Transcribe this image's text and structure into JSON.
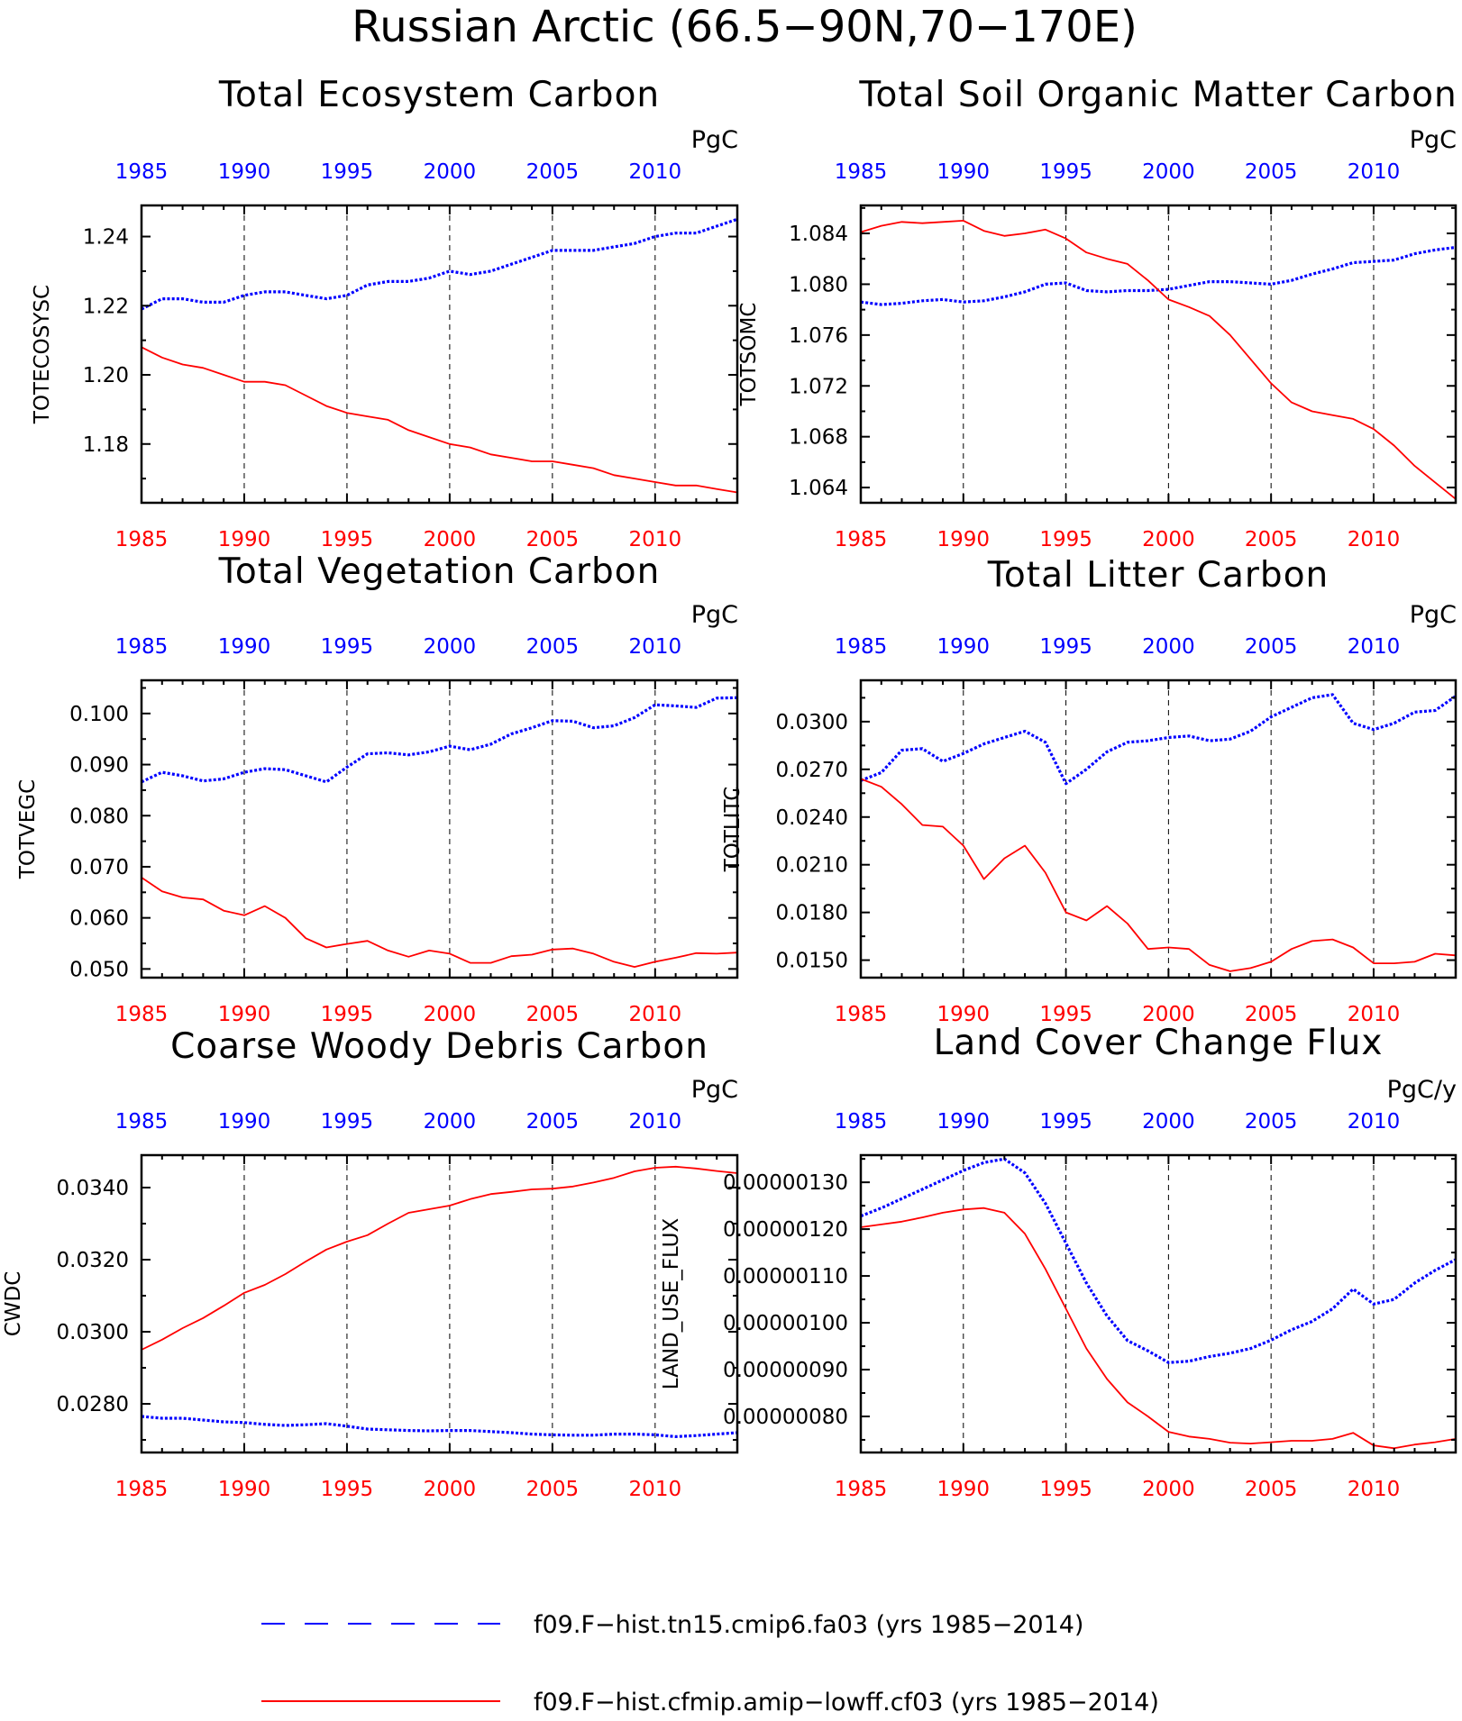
{
  "figure": {
    "title": "Russian Arctic (66.5−90N,70−170E)",
    "legend": [
      {
        "label": "f09.F−hist.tn15.cmip6.fa03 (yrs 1985−2014)",
        "color": "#0000ff",
        "style": "dashed"
      },
      {
        "label": "f09.F−hist.cfmip.amip−lowff.cf03 (yrs 1985−2014)",
        "color": "#ff0000",
        "style": "solid"
      }
    ],
    "colors": {
      "top_axis": "#0000ff",
      "bottom_axis": "#ff0000",
      "grid": "#000000"
    }
  },
  "chart_data": [
    {
      "type": "line",
      "title": "Total Ecosystem Carbon",
      "ylabel": "TOTECOSYSC",
      "units": "PgC",
      "xlim": [
        1985,
        2014
      ],
      "ylim": [
        1.163,
        1.249
      ],
      "x_ticks": [
        "1985",
        "1990",
        "1995",
        "2000",
        "2005",
        "2010"
      ],
      "y_ticks": [
        1.18,
        1.2,
        1.22,
        1.24
      ],
      "y_tick_labels": [
        "1.18",
        "1.20",
        "1.22",
        "1.24"
      ],
      "grid": "dashed vertical at 1990, 1995, 2000, 2005, 2010",
      "x": [
        1985,
        1986,
        1987,
        1988,
        1989,
        1990,
        1991,
        1992,
        1993,
        1994,
        1995,
        1996,
        1997,
        1998,
        1999,
        2000,
        2001,
        2002,
        2003,
        2004,
        2005,
        2006,
        2007,
        2008,
        2009,
        2010,
        2011,
        2012,
        2013,
        2014
      ],
      "series": [
        {
          "color": "#0000ff",
          "dashed": true,
          "values": [
            1.219,
            1.222,
            1.222,
            1.221,
            1.221,
            1.223,
            1.224,
            1.224,
            1.223,
            1.222,
            1.223,
            1.226,
            1.227,
            1.227,
            1.228,
            1.23,
            1.229,
            1.23,
            1.232,
            1.234,
            1.236,
            1.236,
            1.236,
            1.237,
            1.238,
            1.24,
            1.241,
            1.241,
            1.243,
            1.245
          ]
        },
        {
          "color": "#ff0000",
          "dashed": false,
          "values": [
            1.208,
            1.205,
            1.203,
            1.202,
            1.2,
            1.198,
            1.198,
            1.197,
            1.194,
            1.191,
            1.189,
            1.188,
            1.187,
            1.184,
            1.182,
            1.18,
            1.179,
            1.177,
            1.176,
            1.175,
            1.175,
            1.174,
            1.173,
            1.171,
            1.17,
            1.169,
            1.168,
            1.168,
            1.167,
            1.166
          ]
        }
      ]
    },
    {
      "type": "line",
      "title": "Total Soil Organic Matter Carbon",
      "ylabel": "TOTSOMC",
      "units": "PgC",
      "xlim": [
        1985,
        2014
      ],
      "ylim": [
        1.0628,
        1.0862
      ],
      "x_ticks": [
        "1985",
        "1990",
        "1995",
        "2000",
        "2005",
        "2010"
      ],
      "y_ticks": [
        1.064,
        1.068,
        1.072,
        1.076,
        1.08,
        1.084
      ],
      "y_tick_labels": [
        "1.064",
        "1.068",
        "1.072",
        "1.076",
        "1.080",
        "1.084"
      ],
      "grid": "dashed vertical at 1990, 1995, 2000, 2005, 2010",
      "x": [
        1985,
        1986,
        1987,
        1988,
        1989,
        1990,
        1991,
        1992,
        1993,
        1994,
        1995,
        1996,
        1997,
        1998,
        1999,
        2000,
        2001,
        2002,
        2003,
        2004,
        2005,
        2006,
        2007,
        2008,
        2009,
        2010,
        2011,
        2012,
        2013,
        2014
      ],
      "series": [
        {
          "color": "#0000ff",
          "dashed": true,
          "values": [
            1.0786,
            1.0784,
            1.0785,
            1.0787,
            1.0788,
            1.0786,
            1.0787,
            1.079,
            1.0794,
            1.08,
            1.0801,
            1.0795,
            1.0794,
            1.0795,
            1.0795,
            1.0796,
            1.0799,
            1.0802,
            1.0802,
            1.0801,
            1.08,
            1.0803,
            1.0808,
            1.0812,
            1.0817,
            1.0818,
            1.0819,
            1.0824,
            1.0827,
            1.0829
          ]
        },
        {
          "color": "#ff0000",
          "dashed": false,
          "values": [
            1.0841,
            1.0846,
            1.0849,
            1.0848,
            1.0849,
            1.085,
            1.0842,
            1.0838,
            1.084,
            1.0843,
            1.0836,
            1.0825,
            1.082,
            1.0816,
            1.0803,
            1.0788,
            1.0782,
            1.0775,
            1.076,
            1.0741,
            1.0722,
            1.0707,
            1.07,
            1.0697,
            1.0694,
            1.0686,
            1.0673,
            1.0657,
            1.0644,
            1.0631
          ]
        }
      ]
    },
    {
      "type": "line",
      "title": "Total Vegetation Carbon",
      "ylabel": "TOTVEGC",
      "units": "PgC",
      "xlim": [
        1985,
        2014
      ],
      "ylim": [
        0.0483,
        0.1065
      ],
      "x_ticks": [
        "1985",
        "1990",
        "1995",
        "2000",
        "2005",
        "2010"
      ],
      "y_ticks": [
        0.05,
        0.06,
        0.07,
        0.08,
        0.09,
        0.1
      ],
      "y_tick_labels": [
        "0.050",
        "0.060",
        "0.070",
        "0.080",
        "0.090",
        "0.100"
      ],
      "grid": "dashed vertical at 1990, 1995, 2000, 2005, 2010",
      "x": [
        1985,
        1986,
        1987,
        1988,
        1989,
        1990,
        1991,
        1992,
        1993,
        1994,
        1995,
        1996,
        1997,
        1998,
        1999,
        2000,
        2001,
        2002,
        2003,
        2004,
        2005,
        2006,
        2007,
        2008,
        2009,
        2010,
        2011,
        2012,
        2013,
        2014
      ],
      "series": [
        {
          "color": "#0000ff",
          "dashed": true,
          "values": [
            0.0866,
            0.0885,
            0.0878,
            0.0868,
            0.0872,
            0.0885,
            0.0892,
            0.089,
            0.0878,
            0.0866,
            0.0895,
            0.0921,
            0.0923,
            0.0919,
            0.0925,
            0.0936,
            0.0929,
            0.094,
            0.096,
            0.0972,
            0.0986,
            0.0985,
            0.0972,
            0.0976,
            0.0992,
            0.1017,
            0.1015,
            0.1012,
            0.103,
            0.1031
          ]
        },
        {
          "color": "#ff0000",
          "dashed": false,
          "values": [
            0.0679,
            0.0652,
            0.064,
            0.0636,
            0.0614,
            0.0605,
            0.0623,
            0.06,
            0.056,
            0.0542,
            0.0549,
            0.0555,
            0.0536,
            0.0524,
            0.0536,
            0.053,
            0.0512,
            0.0512,
            0.0525,
            0.0528,
            0.0538,
            0.054,
            0.053,
            0.0514,
            0.0504,
            0.0514,
            0.0522,
            0.0531,
            0.053,
            0.0532
          ]
        }
      ]
    },
    {
      "type": "line",
      "title": "Total Litter Carbon",
      "ylabel": "TOTLITC",
      "units": "PgC",
      "xlim": [
        1985,
        2014
      ],
      "ylim": [
        0.0139,
        0.0326
      ],
      "x_ticks": [
        "1985",
        "1990",
        "1995",
        "2000",
        "2005",
        "2010"
      ],
      "y_ticks": [
        0.015,
        0.018,
        0.021,
        0.024,
        0.027,
        0.03
      ],
      "y_tick_labels": [
        "0.0150",
        "0.0180",
        "0.0210",
        "0.0240",
        "0.0270",
        "0.0300"
      ],
      "grid": "dashed vertical at 1990, 1995, 2000, 2005, 2010",
      "x": [
        1985,
        1986,
        1987,
        1988,
        1989,
        1990,
        1991,
        1992,
        1993,
        1994,
        1995,
        1996,
        1997,
        1998,
        1999,
        2000,
        2001,
        2002,
        2003,
        2004,
        2005,
        2006,
        2007,
        2008,
        2009,
        2010,
        2011,
        2012,
        2013,
        2014
      ],
      "series": [
        {
          "color": "#0000ff",
          "dashed": true,
          "values": [
            0.0263,
            0.0268,
            0.0282,
            0.0283,
            0.0275,
            0.028,
            0.0286,
            0.029,
            0.0294,
            0.0287,
            0.0261,
            0.027,
            0.0281,
            0.0287,
            0.0288,
            0.029,
            0.0291,
            0.0288,
            0.0289,
            0.0294,
            0.0303,
            0.0309,
            0.0315,
            0.0317,
            0.0299,
            0.0295,
            0.0299,
            0.0306,
            0.0307,
            0.0316
          ]
        },
        {
          "color": "#ff0000",
          "dashed": false,
          "values": [
            0.0264,
            0.0259,
            0.0248,
            0.0235,
            0.0234,
            0.0222,
            0.0201,
            0.0214,
            0.0222,
            0.0205,
            0.018,
            0.0175,
            0.0184,
            0.0173,
            0.0157,
            0.0158,
            0.0157,
            0.0147,
            0.0143,
            0.0145,
            0.0149,
            0.0157,
            0.0162,
            0.0163,
            0.0158,
            0.0148,
            0.0148,
            0.0149,
            0.0154,
            0.0153
          ]
        }
      ]
    },
    {
      "type": "line",
      "title": "Coarse Woody Debris Carbon",
      "ylabel": "CWDC",
      "units": "PgC",
      "xlim": [
        1985,
        2014
      ],
      "ylim": [
        0.02665,
        0.0349
      ],
      "x_ticks": [
        "1985",
        "1990",
        "1995",
        "2000",
        "2005",
        "2010"
      ],
      "y_ticks": [
        0.028,
        0.03,
        0.032,
        0.034
      ],
      "y_tick_labels": [
        "0.0280",
        "0.0300",
        "0.0320",
        "0.0340"
      ],
      "grid": "dashed vertical at 1990, 1995, 2000, 2005, 2010",
      "x": [
        1985,
        1986,
        1987,
        1988,
        1989,
        1990,
        1991,
        1992,
        1993,
        1994,
        1995,
        1996,
        1997,
        1998,
        1999,
        2000,
        2001,
        2002,
        2003,
        2004,
        2005,
        2006,
        2007,
        2008,
        2009,
        2010,
        2011,
        2012,
        2013,
        2014
      ],
      "series": [
        {
          "color": "#0000ff",
          "dashed": true,
          "values": [
            0.02765,
            0.0276,
            0.0276,
            0.02755,
            0.0275,
            0.02748,
            0.02743,
            0.0274,
            0.02742,
            0.02745,
            0.02738,
            0.0273,
            0.02728,
            0.02726,
            0.02725,
            0.02726,
            0.02726,
            0.02723,
            0.0272,
            0.02716,
            0.02714,
            0.02713,
            0.02713,
            0.02716,
            0.02716,
            0.02714,
            0.02709,
            0.02712,
            0.02716,
            0.0272
          ]
        },
        {
          "color": "#ff0000",
          "dashed": false,
          "values": [
            0.0295,
            0.02978,
            0.0301,
            0.03038,
            0.03072,
            0.03108,
            0.0313,
            0.0316,
            0.03195,
            0.03228,
            0.0325,
            0.03268,
            0.033,
            0.0333,
            0.0334,
            0.0335,
            0.03368,
            0.03382,
            0.03388,
            0.03395,
            0.03397,
            0.03403,
            0.03414,
            0.03427,
            0.03445,
            0.03455,
            0.03458,
            0.03453,
            0.03446,
            0.0344
          ]
        }
      ]
    },
    {
      "type": "line",
      "title": "Land Cover Change Flux",
      "ylabel": "LAND_USE_FLUX",
      "units": "PgC/y",
      "xlim": [
        1985,
        2014
      ],
      "ylim": [
        7.23e-07,
        1.358e-06
      ],
      "x_ticks": [
        "1985",
        "1990",
        "1995",
        "2000",
        "2005",
        "2010"
      ],
      "y_ticks": [
        8e-07,
        9e-07,
        1e-06,
        1.1e-06,
        1.2e-06,
        1.3e-06
      ],
      "y_tick_labels": [
        "0.00000080",
        "0.00000090",
        "0.00000100",
        "0.00000110",
        "0.00000120",
        "0.00000130"
      ],
      "grid": "dashed vertical at 1990, 1995, 2000, 2005, 2010",
      "x": [
        1985,
        1986,
        1987,
        1988,
        1989,
        1990,
        1991,
        1992,
        1993,
        1994,
        1995,
        1996,
        1997,
        1998,
        1999,
        2000,
        2001,
        2002,
        2003,
        2004,
        2005,
        2006,
        2007,
        2008,
        2009,
        2010,
        2011,
        2012,
        2013,
        2014
      ],
      "series": [
        {
          "color": "#0000ff",
          "dashed": true,
          "values": [
            1.228e-06,
            1.245e-06,
            1.265e-06,
            1.285e-06,
            1.305e-06,
            1.325e-06,
            1.342e-06,
            1.35e-06,
            1.32e-06,
            1.255e-06,
            1.17e-06,
            1.085e-06,
            1.015e-06,
            9.62e-07,
            9.4e-07,
            9.15e-07,
            9.18e-07,
            9.28e-07,
            9.35e-07,
            9.45e-07,
            9.63e-07,
            9.85e-07,
            1.003e-06,
            1.03e-06,
            1.072e-06,
            1.04e-06,
            1.05e-06,
            1.085e-06,
            1.112e-06,
            1.135e-06
          ]
        },
        {
          "color": "#ff0000",
          "dashed": false,
          "values": [
            1.204e-06,
            1.21e-06,
            1.216e-06,
            1.225e-06,
            1.235e-06,
            1.242e-06,
            1.245e-06,
            1.235e-06,
            1.19e-06,
            1.115e-06,
            1.03e-06,
            9.45e-07,
            8.8e-07,
            8.3e-07,
            8e-07,
            7.67e-07,
            7.57e-07,
            7.52e-07,
            7.44e-07,
            7.42e-07,
            7.45e-07,
            7.48e-07,
            7.48e-07,
            7.52e-07,
            7.65e-07,
            7.38e-07,
            7.32e-07,
            7.4e-07,
            7.45e-07,
            7.52e-07
          ]
        }
      ]
    }
  ]
}
